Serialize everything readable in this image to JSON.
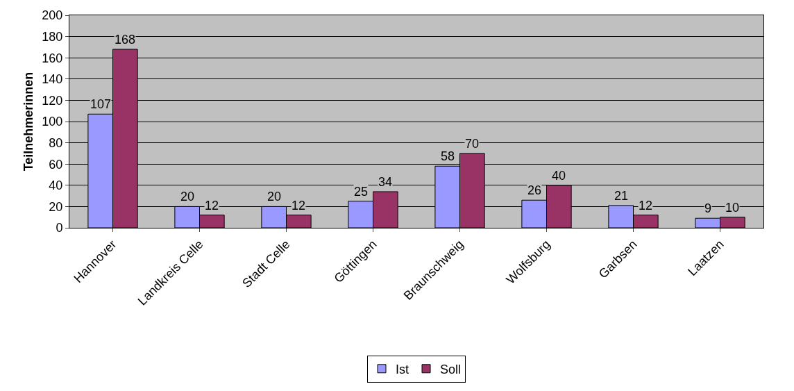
{
  "chart_data": {
    "type": "bar",
    "ylabel": "Teilnehmerinnen",
    "categories": [
      "Hannover",
      "Landkreis Celle",
      "Stadt Celle",
      "Göttingen",
      "Braunschweig",
      "Wolfsburg",
      "Garbsen",
      "Laatzen"
    ],
    "series": [
      {
        "name": "Ist",
        "color": "#9999ff",
        "values": [
          107,
          20,
          20,
          25,
          58,
          26,
          21,
          9
        ]
      },
      {
        "name": "Soll",
        "color": "#993366",
        "values": [
          168,
          12,
          12,
          34,
          70,
          40,
          12,
          10
        ]
      }
    ],
    "ylim": [
      0,
      200
    ],
    "yticks": [
      0,
      20,
      40,
      60,
      80,
      100,
      120,
      140,
      160,
      180,
      200
    ],
    "grid": "y",
    "legend": "bottom",
    "data_labels": true
  }
}
